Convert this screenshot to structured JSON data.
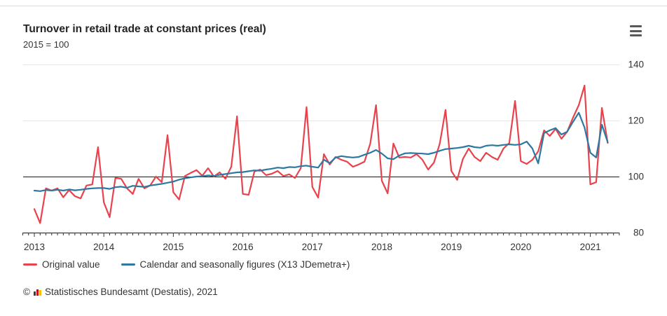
{
  "header": {
    "title": "Turnover in retail trade at constant prices (real)",
    "subtitle": "2015 = 100"
  },
  "menu": {
    "label": "chart context menu"
  },
  "legend": {
    "items": [
      {
        "label": "Original value",
        "color": "#e8434d"
      },
      {
        "label": "Calendar and seasonally figures (X13 JDemetra+)",
        "color": "#2d78a0"
      }
    ]
  },
  "footer": {
    "copyright": "©",
    "source": "Statistisches Bundesamt (Destatis), 2021",
    "logo_colors": [
      "#3c3c3b",
      "#d0021b",
      "#f0c400"
    ]
  },
  "chart_data": {
    "type": "line",
    "title": "Turnover in retail trade at constant prices (real)",
    "subtitle": "2015 = 100",
    "x_frequency": "monthly",
    "x_start": "2013-01",
    "x_end": "2021-04",
    "x_tick_labels": [
      "2013",
      "2014",
      "2015",
      "2016",
      "2017",
      "2018",
      "2019",
      "2020",
      "2021"
    ],
    "y_ticks": [
      140,
      120,
      100,
      80
    ],
    "ylim": [
      80,
      140
    ],
    "baseline": 100,
    "grid": "horizontal",
    "legend_position": "bottom-left",
    "series": [
      {
        "name": "Original value",
        "color": "#e8434d",
        "values": [
          88.4,
          83.4,
          95.8,
          95.0,
          95.8,
          92.6,
          95.2,
          93.0,
          92.2,
          96.8,
          97.2,
          110.5,
          90.8,
          85.5,
          99.5,
          99.2,
          95.8,
          93.8,
          99.2,
          95.8,
          96.8,
          100.0,
          98.0,
          114.8,
          94.4,
          91.8,
          100.2,
          101.3,
          102.3,
          100.3,
          103.0,
          100.0,
          101.5,
          99.2,
          103.5,
          121.5,
          93.8,
          93.5,
          101.8,
          102.5,
          100.5,
          101.0,
          102.0,
          100.2,
          100.8,
          99.5,
          103.0,
          124.8,
          96.3,
          92.5,
          108.0,
          104.3,
          107.0,
          106.0,
          105.3,
          103.5,
          104.3,
          105.3,
          111.8,
          125.5,
          98.5,
          94.0,
          111.8,
          106.8,
          107.0,
          106.8,
          108.0,
          106.0,
          102.5,
          105.0,
          111.8,
          123.8,
          102.0,
          98.8,
          106.3,
          110.0,
          107.0,
          105.5,
          108.5,
          107.0,
          106.0,
          110.0,
          112.0,
          127.0,
          105.5,
          104.5,
          106.0,
          109.0,
          116.5,
          114.5,
          117.0,
          113.5,
          116.0,
          121.0,
          125.5,
          132.5,
          97.2,
          98.0,
          124.5,
          112.0
        ]
      },
      {
        "name": "Calendar and seasonally figures (X13 JDemetra+)",
        "color": "#2d78a0",
        "values": [
          95.0,
          94.8,
          95.2,
          95.0,
          95.3,
          95.0,
          95.4,
          95.1,
          95.3,
          95.6,
          95.8,
          95.9,
          95.9,
          95.6,
          96.2,
          96.4,
          96.0,
          96.7,
          96.5,
          96.3,
          96.8,
          97.1,
          97.4,
          97.8,
          98.2,
          98.9,
          99.4,
          99.7,
          100.0,
          100.1,
          100.4,
          100.2,
          100.6,
          100.9,
          101.2,
          101.5,
          101.6,
          101.9,
          102.2,
          102.1,
          102.5,
          102.8,
          103.2,
          103.0,
          103.4,
          103.3,
          103.7,
          103.9,
          103.5,
          103.2,
          106.0,
          104.8,
          106.8,
          107.3,
          107.0,
          106.8,
          107.0,
          107.8,
          108.5,
          109.5,
          108.2,
          106.5,
          106.2,
          107.5,
          108.3,
          108.4,
          108.3,
          108.2,
          108.0,
          108.5,
          109.2,
          109.8,
          110.0,
          110.2,
          110.5,
          111.0,
          110.5,
          110.3,
          111.0,
          111.2,
          111.0,
          111.3,
          111.5,
          111.3,
          111.5,
          112.5,
          110.0,
          104.7,
          115.5,
          116.5,
          117.3,
          115.0,
          116.0,
          119.5,
          122.8,
          117.5,
          108.5,
          106.8,
          118.5,
          112.2
        ]
      }
    ]
  }
}
